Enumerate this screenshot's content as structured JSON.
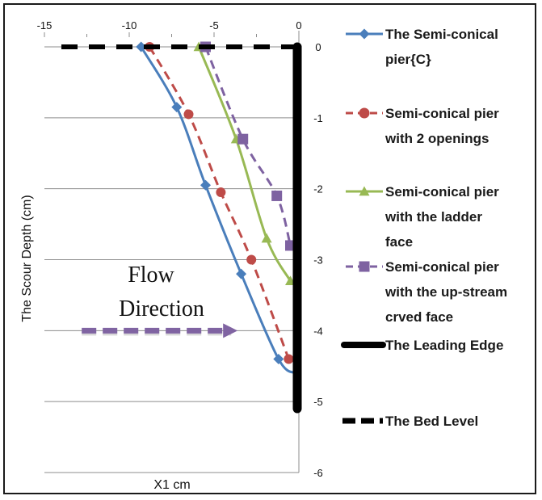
{
  "chart_data": {
    "type": "line",
    "xlabel": "X1 cm",
    "ylabel": "The Scour Depth (cm)",
    "xlim": [
      -15,
      0
    ],
    "ylim": [
      -6,
      0
    ],
    "x_ticks": [
      "-15",
      "-10",
      "-5",
      "0"
    ],
    "y_ticks": [
      "0",
      "-1",
      "-2",
      "-3",
      "-4",
      "-5",
      "-6"
    ],
    "grid": "horizontal",
    "legend_position": "right",
    "annotation": {
      "line1": "Flow",
      "line2": "Direction"
    },
    "series": [
      {
        "name": "The Semi-conical pier{C}",
        "color": "#4a7ebb",
        "marker": "diamond",
        "line": "solid",
        "points": [
          [
            -9.3,
            0
          ],
          [
            -7.2,
            -0.85
          ],
          [
            -5.5,
            -1.95
          ],
          [
            -3.4,
            -3.2
          ],
          [
            -1.2,
            -4.4
          ],
          [
            -0.2,
            -4.6
          ]
        ]
      },
      {
        "name": "Semi-conical pier with 2 openings",
        "color": "#be4b48",
        "marker": "circle",
        "line": "dashed",
        "points": [
          [
            -8.8,
            0
          ],
          [
            -6.5,
            -0.95
          ],
          [
            -4.6,
            -2.05
          ],
          [
            -2.8,
            -3.0
          ],
          [
            -0.6,
            -4.4
          ]
        ]
      },
      {
        "name": "Semi-conical pier with the ladder face",
        "color": "#98b954",
        "marker": "triangle",
        "line": "solid",
        "points": [
          [
            -5.9,
            0
          ],
          [
            -3.7,
            -1.3
          ],
          [
            -1.9,
            -2.7
          ],
          [
            -0.5,
            -3.3
          ]
        ]
      },
      {
        "name": "Semi-conical pier with the up-stream crved face",
        "color": "#7e62a1",
        "marker": "square",
        "line": "dashed",
        "points": [
          [
            -5.5,
            0
          ],
          [
            -3.3,
            -1.3
          ],
          [
            -1.3,
            -2.1
          ],
          [
            -0.5,
            -2.8
          ]
        ]
      },
      {
        "name": "The Leading Edge",
        "color": "#000000",
        "marker": "none",
        "line": "thick",
        "points": [
          [
            0,
            0
          ],
          [
            0,
            -5.1
          ]
        ]
      },
      {
        "name": "The Bed Level",
        "color": "#000000",
        "marker": "none",
        "line": "thick-dashed",
        "points": [
          [
            -14,
            0
          ],
          [
            0,
            0
          ]
        ]
      }
    ],
    "flow_arrow": {
      "color": "#8064a2",
      "x_start": -12.8,
      "x_end": -3.8,
      "y": -4.0
    }
  },
  "legend": [
    {
      "lines": [
        "The Semi-conical",
        "pier{C}"
      ]
    },
    {
      "lines": [
        "Semi-conical pier",
        "with 2 openings"
      ]
    },
    {
      "lines": [
        "Semi-conical pier",
        "with the ladder",
        "face"
      ]
    },
    {
      "lines": [
        "Semi-conical pier",
        "with the up-stream",
        "crved face"
      ]
    },
    {
      "lines": [
        "The Leading Edge"
      ]
    },
    {
      "lines": [
        "The Bed Level"
      ]
    }
  ]
}
